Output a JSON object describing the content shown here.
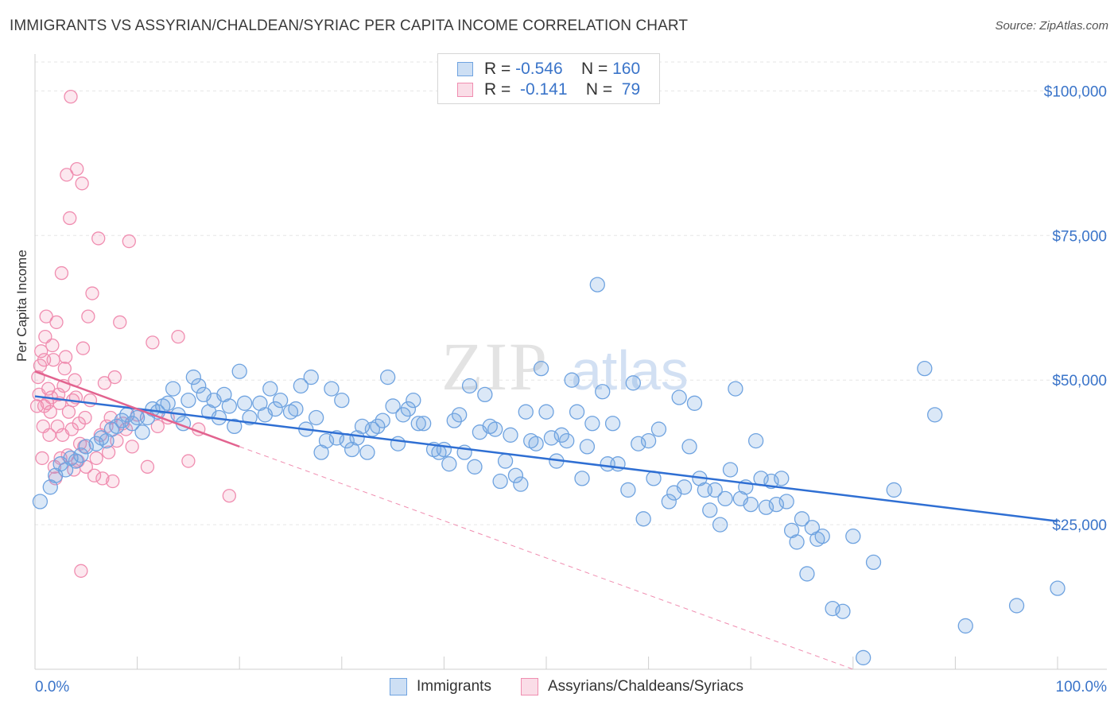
{
  "header": {
    "title": "IMMIGRANTS VS ASSYRIAN/CHALDEAN/SYRIAC PER CAPITA INCOME CORRELATION CHART",
    "source": "Source: ZipAtlas.com"
  },
  "watermark": {
    "left": "ZIP",
    "right": "atlas"
  },
  "legend": {
    "rows": [
      {
        "r_label": "R = ",
        "r_value": "-0.546",
        "n_label": "N = ",
        "n_value": "160",
        "color": "#6fa3e0"
      },
      {
        "r_label": "R = ",
        "r_value": "-0.141",
        "n_label": "N = ",
        "n_value": "79",
        "color": "#f08db0"
      }
    ]
  },
  "bottom_legend": {
    "items": [
      {
        "label": "Immigrants",
        "color": "#6fa3e0"
      },
      {
        "label": "Assyrians/Chaldeans/Syriacs",
        "color": "#f08db0"
      }
    ]
  },
  "chart_data": {
    "type": "scatter",
    "title": "IMMIGRANTS VS ASSYRIAN/CHALDEAN/SYRIAC PER CAPITA INCOME CORRELATION CHART",
    "xlabel": "",
    "ylabel": "Per Capita Income",
    "xlim": [
      0,
      100
    ],
    "ylim": [
      0,
      105000
    ],
    "x_tick_labels": [
      "0.0%",
      "100.0%"
    ],
    "y_ticks": [
      25000,
      50000,
      75000,
      100000
    ],
    "y_tick_labels": [
      "$25,000",
      "$50,000",
      "$75,000",
      "$100,000"
    ],
    "grid": true,
    "series": [
      {
        "name": "Immigrants",
        "color": "#6fa3e0",
        "trend": {
          "x": [
            0,
            100
          ],
          "y": [
            47200,
            25600
          ]
        },
        "points": [
          [
            0.5,
            29000
          ],
          [
            1.5,
            31500
          ],
          [
            2,
            33500
          ],
          [
            2.5,
            35500
          ],
          [
            3,
            34500
          ],
          [
            3.5,
            36500
          ],
          [
            4,
            36000
          ],
          [
            4.5,
            37000
          ],
          [
            5,
            38500
          ],
          [
            6,
            39000
          ],
          [
            6.5,
            40000
          ],
          [
            7,
            39500
          ],
          [
            7.5,
            41500
          ],
          [
            8,
            42000
          ],
          [
            8.5,
            43000
          ],
          [
            9,
            44000
          ],
          [
            9.5,
            42500
          ],
          [
            10,
            43500
          ],
          [
            10.5,
            41000
          ],
          [
            11,
            43500
          ],
          [
            11.5,
            45000
          ],
          [
            12,
            44500
          ],
          [
            12.5,
            45500
          ],
          [
            13,
            46000
          ],
          [
            13.5,
            48500
          ],
          [
            14,
            44000
          ],
          [
            14.5,
            42500
          ],
          [
            15,
            46500
          ],
          [
            15.5,
            50500
          ],
          [
            16,
            49000
          ],
          [
            16.5,
            47500
          ],
          [
            17,
            44500
          ],
          [
            17.5,
            46500
          ],
          [
            18,
            43500
          ],
          [
            18.5,
            47500
          ],
          [
            19,
            45500
          ],
          [
            19.5,
            42000
          ],
          [
            20,
            51500
          ],
          [
            20.5,
            46000
          ],
          [
            21,
            43500
          ],
          [
            22,
            46000
          ],
          [
            22.5,
            44000
          ],
          [
            23,
            48500
          ],
          [
            23.5,
            45000
          ],
          [
            24,
            46500
          ],
          [
            25,
            44500
          ],
          [
            25.5,
            45000
          ],
          [
            26,
            49000
          ],
          [
            26.5,
            41500
          ],
          [
            27,
            50500
          ],
          [
            27.5,
            43500
          ],
          [
            28,
            37500
          ],
          [
            28.5,
            39500
          ],
          [
            29,
            48500
          ],
          [
            29.5,
            40000
          ],
          [
            30,
            46500
          ],
          [
            30.5,
            39500
          ],
          [
            31,
            38000
          ],
          [
            31.5,
            40000
          ],
          [
            32,
            42000
          ],
          [
            32.5,
            37500
          ],
          [
            33,
            41500
          ],
          [
            33.5,
            42000
          ],
          [
            34,
            43000
          ],
          [
            34.5,
            50500
          ],
          [
            35,
            45500
          ],
          [
            35.5,
            39000
          ],
          [
            36,
            44000
          ],
          [
            36.5,
            45000
          ],
          [
            37,
            46500
          ],
          [
            37.5,
            42500
          ],
          [
            38,
            42500
          ],
          [
            39,
            38000
          ],
          [
            39.5,
            37500
          ],
          [
            40,
            38000
          ],
          [
            40.5,
            35500
          ],
          [
            41,
            43000
          ],
          [
            41.5,
            44000
          ],
          [
            42,
            37500
          ],
          [
            42.5,
            49000
          ],
          [
            43,
            35000
          ],
          [
            43.5,
            41000
          ],
          [
            44,
            47500
          ],
          [
            44.5,
            42000
          ],
          [
            45,
            41500
          ],
          [
            45.5,
            32500
          ],
          [
            46,
            36000
          ],
          [
            46.5,
            40500
          ],
          [
            47,
            33500
          ],
          [
            47.5,
            32000
          ],
          [
            48,
            44500
          ],
          [
            48.5,
            39500
          ],
          [
            49,
            39000
          ],
          [
            49.5,
            52000
          ],
          [
            50,
            44500
          ],
          [
            50.5,
            40000
          ],
          [
            51,
            36000
          ],
          [
            51.5,
            40500
          ],
          [
            52,
            39500
          ],
          [
            52.5,
            50000
          ],
          [
            53,
            44500
          ],
          [
            53.5,
            33000
          ],
          [
            54,
            38500
          ],
          [
            54.5,
            42500
          ],
          [
            55,
            66500
          ],
          [
            55.5,
            48000
          ],
          [
            56,
            35500
          ],
          [
            56.5,
            42500
          ],
          [
            57,
            35500
          ],
          [
            58,
            31000
          ],
          [
            58.5,
            49500
          ],
          [
            59,
            39000
          ],
          [
            59.5,
            26000
          ],
          [
            60,
            39500
          ],
          [
            60.5,
            33000
          ],
          [
            61,
            41500
          ],
          [
            62,
            29000
          ],
          [
            62.5,
            30500
          ],
          [
            63,
            47000
          ],
          [
            63.5,
            31500
          ],
          [
            64,
            38500
          ],
          [
            64.5,
            46000
          ],
          [
            65,
            33000
          ],
          [
            65.5,
            31000
          ],
          [
            66,
            27500
          ],
          [
            66.5,
            31000
          ],
          [
            67,
            25000
          ],
          [
            67.5,
            29500
          ],
          [
            68,
            34500
          ],
          [
            68.5,
            48500
          ],
          [
            69,
            29500
          ],
          [
            69.5,
            31500
          ],
          [
            70,
            28500
          ],
          [
            70.5,
            39500
          ],
          [
            71,
            33000
          ],
          [
            71.5,
            28000
          ],
          [
            72,
            32500
          ],
          [
            72.5,
            28500
          ],
          [
            73,
            33000
          ],
          [
            73.5,
            29000
          ],
          [
            74,
            24000
          ],
          [
            74.5,
            22000
          ],
          [
            75,
            26000
          ],
          [
            75.5,
            16500
          ],
          [
            76,
            24500
          ],
          [
            76.5,
            22500
          ],
          [
            77,
            23000
          ],
          [
            78,
            10500
          ],
          [
            79,
            10000
          ],
          [
            80,
            23000
          ],
          [
            81,
            2000
          ],
          [
            82,
            18500
          ],
          [
            84,
            31000
          ],
          [
            87,
            52000
          ],
          [
            88,
            44000
          ],
          [
            91,
            7500
          ],
          [
            96,
            11000
          ],
          [
            100,
            14000
          ]
        ]
      },
      {
        "name": "Assyrians/Chaldeans/Syriacs",
        "color": "#f08db0",
        "trend": {
          "x": [
            0,
            20
          ],
          "y": [
            51500,
            38500
          ]
        },
        "trend_extended": {
          "x": [
            20,
            80
          ],
          "y": [
            38500,
            0
          ]
        },
        "points": [
          [
            0.2,
            45500
          ],
          [
            0.3,
            50500
          ],
          [
            0.4,
            47500
          ],
          [
            0.5,
            52500
          ],
          [
            0.6,
            55000
          ],
          [
            0.7,
            36500
          ],
          [
            0.8,
            42000
          ],
          [
            0.9,
            53500
          ],
          [
            1,
            57500
          ],
          [
            1.1,
            61000
          ],
          [
            1.2,
            46000
          ],
          [
            1.3,
            48500
          ],
          [
            1.4,
            40500
          ],
          [
            1.5,
            44500
          ],
          [
            1.6,
            47000
          ],
          [
            1.7,
            56000
          ],
          [
            1.8,
            53500
          ],
          [
            1.9,
            35000
          ],
          [
            2,
            33000
          ],
          [
            2.1,
            60000
          ],
          [
            2.2,
            42000
          ],
          [
            2.3,
            47500
          ],
          [
            2.4,
            46000
          ],
          [
            2.5,
            36500
          ],
          [
            2.6,
            68500
          ],
          [
            2.7,
            40500
          ],
          [
            2.8,
            49000
          ],
          [
            2.9,
            52000
          ],
          [
            3,
            54000
          ],
          [
            3.1,
            85500
          ],
          [
            3.2,
            37000
          ],
          [
            3.3,
            44500
          ],
          [
            3.4,
            78000
          ],
          [
            3.5,
            99000
          ],
          [
            3.6,
            41500
          ],
          [
            3.7,
            46500
          ],
          [
            3.8,
            34500
          ],
          [
            3.9,
            50000
          ],
          [
            4,
            47000
          ],
          [
            4.1,
            86500
          ],
          [
            4.2,
            36000
          ],
          [
            4.3,
            42500
          ],
          [
            4.4,
            39000
          ],
          [
            4.5,
            17000
          ],
          [
            4.6,
            84000
          ],
          [
            4.7,
            55500
          ],
          [
            4.8,
            38500
          ],
          [
            4.9,
            43500
          ],
          [
            5,
            35000
          ],
          [
            5.2,
            61000
          ],
          [
            5.4,
            46500
          ],
          [
            5.6,
            65000
          ],
          [
            5.8,
            33500
          ],
          [
            6,
            36500
          ],
          [
            6.2,
            74500
          ],
          [
            6.4,
            40500
          ],
          [
            6.6,
            33000
          ],
          [
            6.8,
            49500
          ],
          [
            7,
            42000
          ],
          [
            7.2,
            37500
          ],
          [
            7.4,
            43500
          ],
          [
            7.6,
            32500
          ],
          [
            7.8,
            50500
          ],
          [
            8,
            39500
          ],
          [
            8.3,
            60000
          ],
          [
            8.6,
            42500
          ],
          [
            8.9,
            41500
          ],
          [
            9.2,
            74000
          ],
          [
            9.5,
            38500
          ],
          [
            10,
            44000
          ],
          [
            11,
            35000
          ],
          [
            11.5,
            56500
          ],
          [
            12,
            42000
          ],
          [
            13,
            43500
          ],
          [
            14,
            57500
          ],
          [
            15,
            36000
          ],
          [
            16,
            41500
          ],
          [
            19,
            30000
          ],
          [
            0.9,
            45500
          ]
        ]
      }
    ]
  }
}
